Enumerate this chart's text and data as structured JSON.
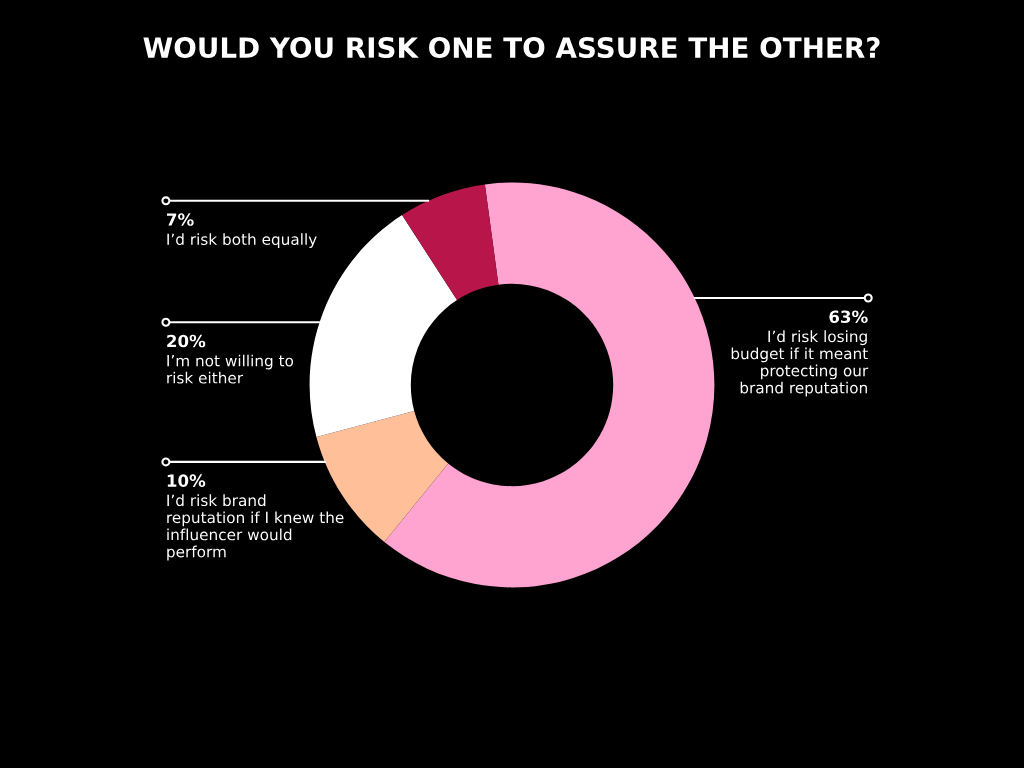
{
  "chart_data": {
    "type": "donut",
    "title": "WOULD YOU RISK ONE TO ASSURE THE OTHER?",
    "categories": [
      "I’d risk losing\nbudget if it meant\nprotecting our\nbrand reputation",
      "I’d risk brand\nreputation if I knew the\ninfluencer would\nperform",
      "I’m not willing to\nrisk either",
      "I’d risk both equally"
    ],
    "values": [
      63,
      10,
      20,
      7
    ],
    "colors": [
      "#ffa3d0",
      "#ffbf99",
      "#ffffff",
      "#b8164a"
    ],
    "value_labels": [
      "63%",
      "10%",
      "20%",
      "7%"
    ]
  }
}
